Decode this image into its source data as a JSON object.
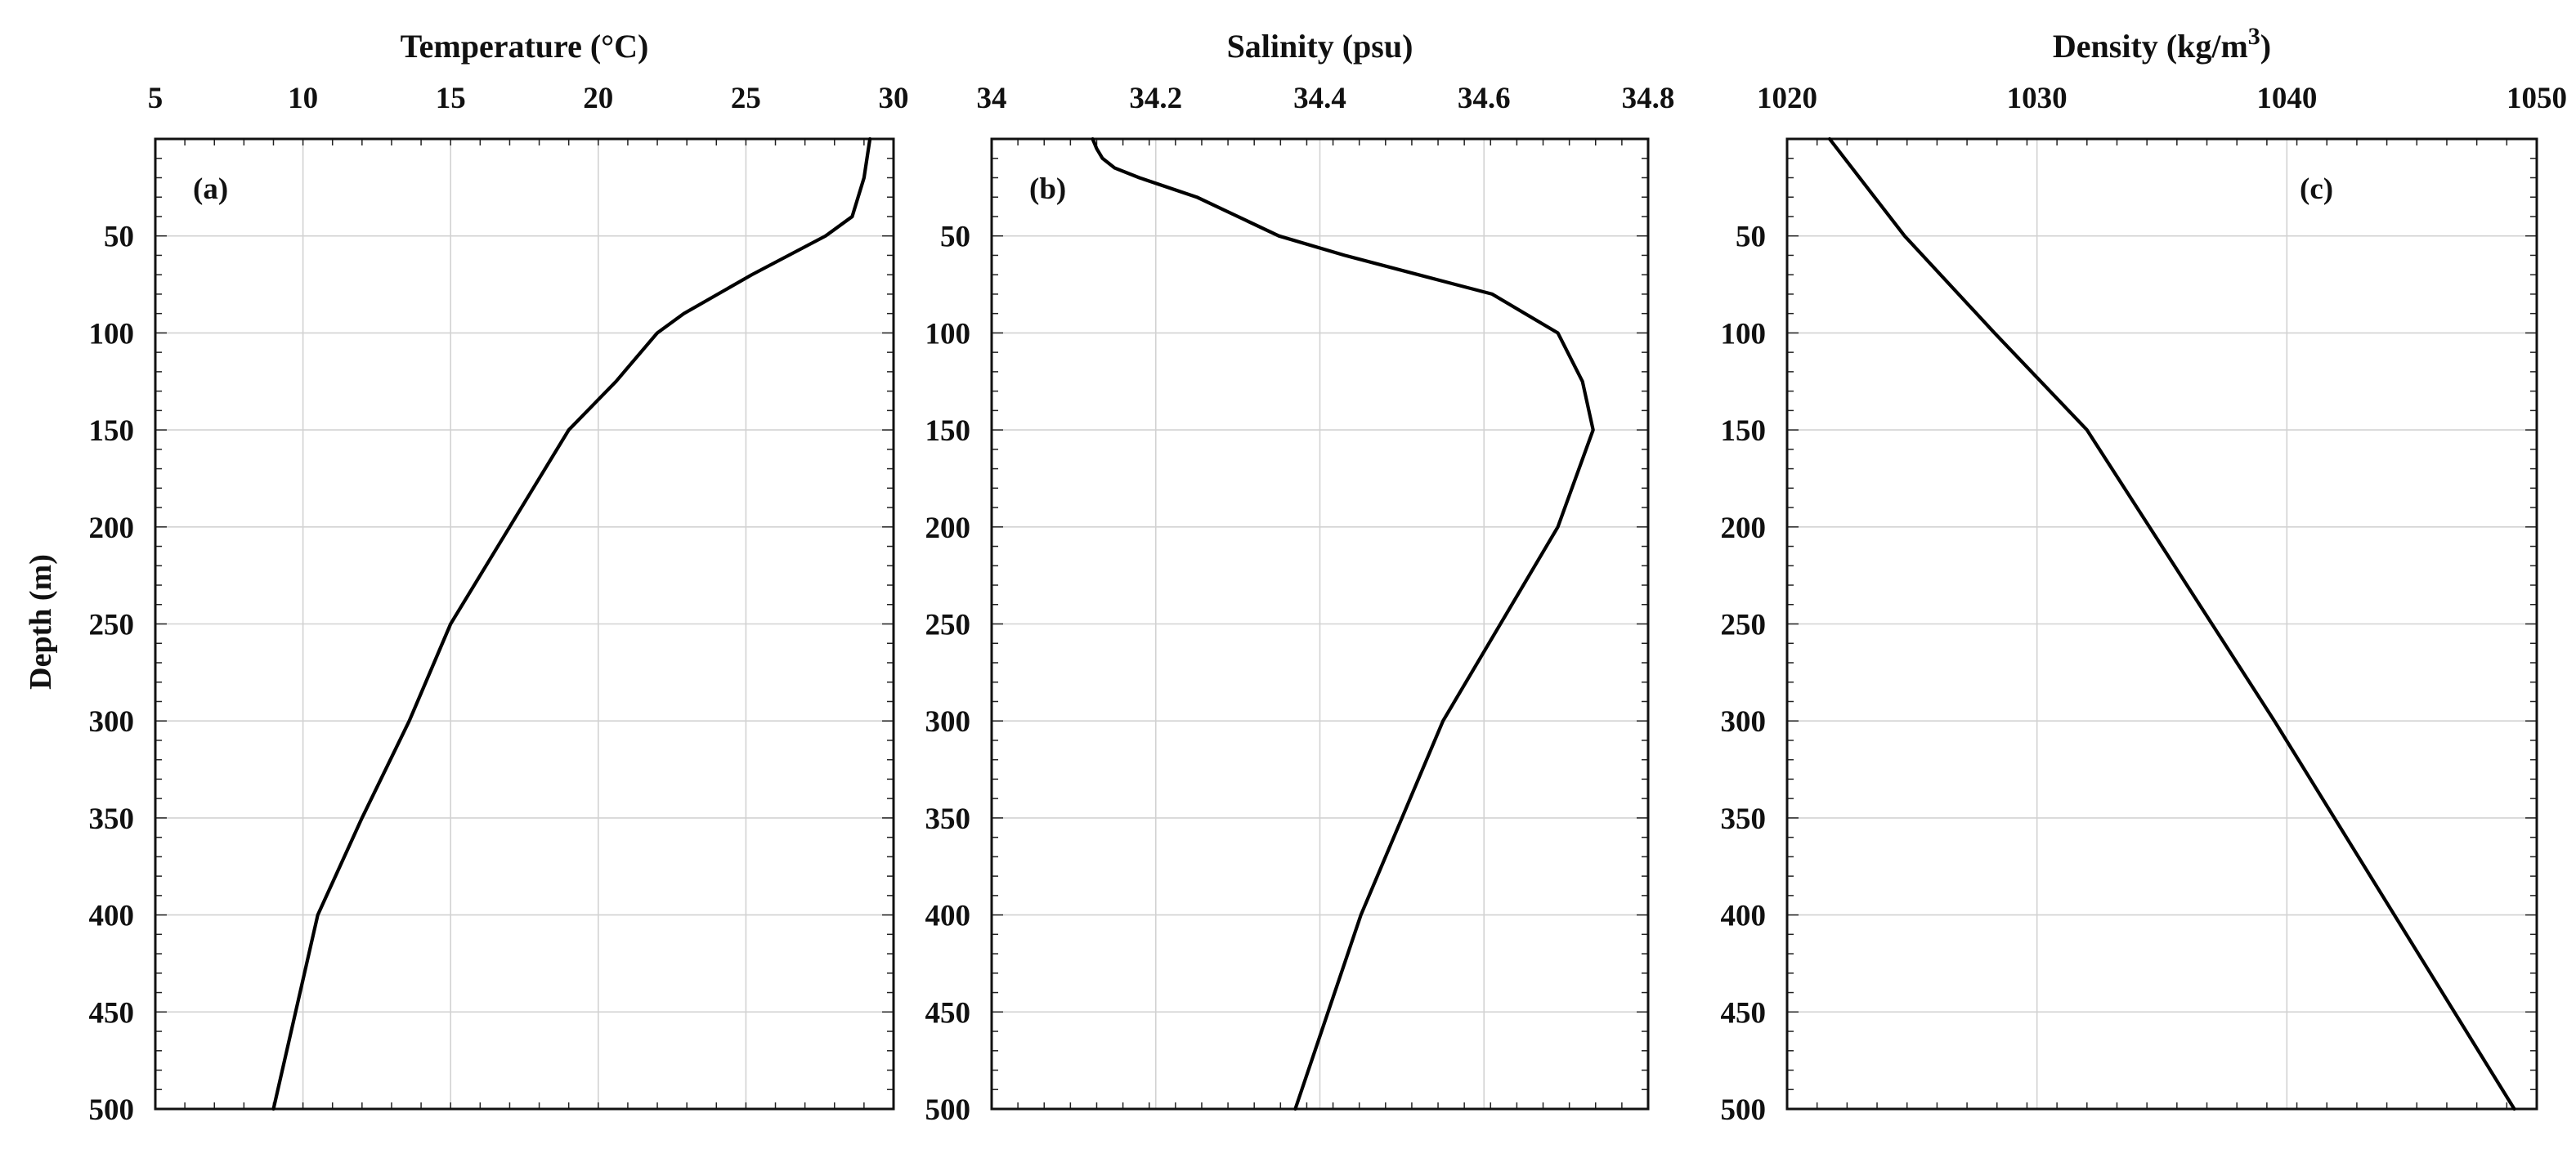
{
  "figure": {
    "ylabel": "Depth (m)"
  },
  "chart_data": [
    {
      "type": "line",
      "panel_label": "(a)",
      "title": "Temperature (°C)",
      "xlim": [
        5,
        30
      ],
      "ylim": [
        500,
        0
      ],
      "x_ticks": [
        "5",
        "10",
        "15",
        "20",
        "25",
        "30"
      ],
      "y_ticks": [
        "50",
        "100",
        "150",
        "200",
        "250",
        "300",
        "350",
        "400",
        "450",
        "500"
      ],
      "grid": true,
      "series": [
        {
          "x": [
            29.2,
            29.0,
            28.6,
            27.7,
            25.2,
            22.9,
            22.0,
            20.6,
            19.0,
            17.0,
            15.0,
            13.6,
            12.0,
            10.5,
            9.0
          ],
          "y": [
            0,
            20,
            40,
            50,
            70,
            90,
            100,
            125,
            150,
            200,
            250,
            300,
            350,
            400,
            500
          ]
        }
      ]
    },
    {
      "type": "line",
      "panel_label": "(b)",
      "title": "Salinity (psu)",
      "xlim": [
        34,
        34.8
      ],
      "ylim": [
        500,
        0
      ],
      "x_ticks": [
        "34",
        "34.2",
        "34.4",
        "34.6",
        "34.8"
      ],
      "y_ticks": [
        "50",
        "100",
        "150",
        "200",
        "250",
        "300",
        "350",
        "400",
        "450",
        "500"
      ],
      "grid": true,
      "series": [
        {
          "x": [
            34.123,
            34.128,
            34.135,
            34.15,
            34.18,
            34.25,
            34.35,
            34.43,
            34.52,
            34.61,
            34.65,
            34.69,
            34.72,
            34.733,
            34.69,
            34.55,
            34.5,
            34.45,
            34.37
          ],
          "y": [
            0,
            5,
            10,
            15,
            20,
            30,
            50,
            60,
            70,
            80,
            90,
            100,
            125,
            150,
            200,
            300,
            350,
            400,
            500
          ]
        }
      ]
    },
    {
      "type": "line",
      "panel_label": "(c)",
      "title": "Density (kg/m",
      "title_sup": "3",
      "title_end": ")",
      "xlim": [
        1020,
        1050
      ],
      "ylim": [
        500,
        0
      ],
      "x_ticks": [
        "1020",
        "1030",
        "1040",
        "1050"
      ],
      "y_ticks": [
        "50",
        "100",
        "150",
        "200",
        "250",
        "300",
        "350",
        "400",
        "450",
        "500"
      ],
      "grid": true,
      "series": [
        {
          "x": [
            1021.7,
            1024.7,
            1028.3,
            1032.0,
            1039.5,
            1049.1
          ],
          "y": [
            0,
            50,
            100,
            150,
            300,
            500
          ]
        }
      ]
    }
  ]
}
